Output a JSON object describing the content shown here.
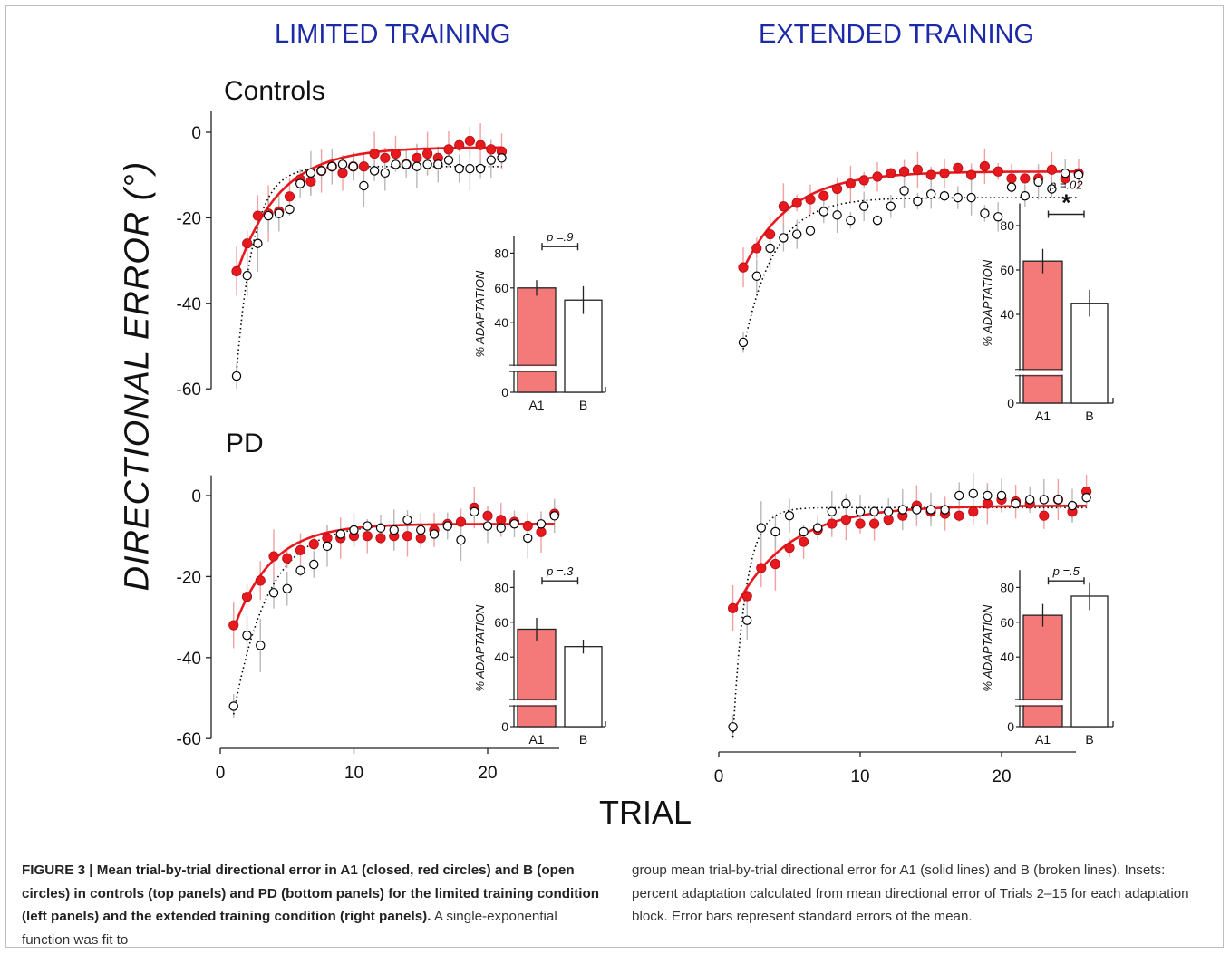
{
  "column_titles": {
    "left": "LIMITED TRAINING",
    "right": "EXTENDED TRAINING"
  },
  "group_labels": {
    "top": "Controls",
    "bottom": "PD"
  },
  "y_axis_title": "DIRECTIONAL  ERROR  (°)",
  "x_axis_title": "TRIAL",
  "colors": {
    "a1": "#e8191e",
    "a1_bar": "#f47a7a",
    "b": "#000000",
    "title": "#1c2aa8"
  },
  "caption": {
    "lead": "FIGURE 3 | Mean trial-by-trial directional error in A1 (closed, red circles) and B (open circles) in controls (top panels) and PD (bottom panels) for the limited training condition (left panels) and the extended training condition (right panels).",
    "left_rest": " A single-exponential function was fit to",
    "right": "group mean trial-by-trial directional error for A1 (solid lines) and B (broken lines). Insets: percent adaptation calculated from mean directional error of Trials 2–15 for each adaptation block. Error bars represent standard errors of the mean."
  },
  "chart_data": [
    {
      "type": "scatter",
      "panel": "limited-controls",
      "ylabel": "DIRECTIONAL  ERROR  (°)",
      "yticks": [
        0,
        -20,
        -40,
        -60
      ],
      "ylim": [
        -60,
        0
      ],
      "xlim": [
        1,
        26
      ],
      "series": [
        {
          "name": "A1",
          "style": "filled-red",
          "x": [
            1,
            2,
            3,
            4,
            5,
            6,
            7,
            8,
            9,
            10,
            11,
            12,
            13,
            14,
            15,
            16,
            17,
            18,
            19,
            20,
            21,
            22,
            23,
            24,
            25,
            26
          ],
          "y": [
            -32.5,
            -26,
            -19.5,
            -19,
            -18.5,
            -15,
            -11,
            -11.5,
            -9,
            -8,
            -9.5,
            -8,
            -8,
            -5,
            -6,
            -5,
            -7.5,
            -6,
            -5,
            -6,
            -4,
            -3,
            -2,
            -3,
            -4,
            -4.5
          ]
        },
        {
          "name": "B",
          "style": "open-black",
          "x": [
            1,
            2,
            3,
            4,
            5,
            6,
            7,
            8,
            9,
            10,
            11,
            12,
            13,
            14,
            15,
            16,
            17,
            18,
            19,
            20,
            21,
            22,
            23,
            24,
            25,
            26
          ],
          "y": [
            -57,
            -33.5,
            -26,
            -19.5,
            -19,
            -18,
            -12,
            -9.5,
            -9,
            -8,
            -7.5,
            -8,
            -12.5,
            -9,
            -9.5,
            -7.5,
            -7.5,
            -8,
            -7.5,
            -7.5,
            -6.5,
            -8.5,
            -8.5,
            -8.5,
            -6.5,
            -6
          ]
        }
      ],
      "fits": {
        "A1": {
          "plateau": -3.5,
          "start": -33,
          "tau": 4.0
        },
        "B": {
          "plateau": -8,
          "start": -56,
          "tau": 1.6
        }
      },
      "inset": {
        "type": "bar",
        "ylabel": "% ADAPTATION",
        "categories": [
          "A1",
          "B"
        ],
        "values": [
          60,
          53
        ],
        "errors": [
          4.5,
          8
        ],
        "yticks": [
          0,
          40,
          60,
          80
        ],
        "ylim": [
          0,
          90
        ],
        "significance": "p =.9",
        "star": false
      }
    },
    {
      "type": "scatter",
      "panel": "extended-controls",
      "ylim": [
        -60,
        0
      ],
      "xlim": [
        1,
        26
      ],
      "series": [
        {
          "name": "A1",
          "style": "filled-red",
          "x": [
            1,
            2,
            3,
            4,
            5,
            6,
            7,
            8,
            9,
            10,
            11,
            12,
            13,
            14,
            15,
            16,
            17,
            18,
            19,
            20,
            21,
            22,
            23,
            24,
            25,
            26
          ],
          "y": [
            -32.5,
            -27,
            -23,
            -15,
            -14,
            -13,
            -12,
            -10,
            -8.5,
            -7.5,
            -6.5,
            -5.5,
            -5,
            -4.5,
            -6,
            -5.5,
            -4,
            -6,
            -3.5,
            -5,
            -7,
            -7,
            -7,
            -4.5,
            -7,
            -5.5
          ]
        },
        {
          "name": "B",
          "style": "open-black",
          "x": [
            1,
            2,
            3,
            4,
            5,
            6,
            7,
            8,
            9,
            10,
            11,
            12,
            13,
            14,
            15,
            16,
            17,
            18,
            19,
            20,
            21,
            22,
            23,
            24,
            25,
            26
          ],
          "y": [
            -54,
            -35,
            -27,
            -24,
            -23,
            -22,
            -16.5,
            -17.5,
            -19,
            -15,
            -19,
            -15,
            -10.5,
            -13.5,
            -11.5,
            -12,
            -12.5,
            -12.5,
            -17,
            -18,
            -9.5,
            -12,
            -8,
            -10,
            -5.5,
            -6
          ]
        }
      ],
      "fits": {
        "A1": {
          "plateau": -5,
          "start": -33,
          "tau": 3.5
        },
        "B": {
          "plateau": -12.5,
          "start": -56,
          "tau": 2.3
        }
      },
      "inset": {
        "type": "bar",
        "ylabel": "% ADAPTATION",
        "categories": [
          "A1",
          "B"
        ],
        "values": [
          64,
          45
        ],
        "errors": [
          5.5,
          6
        ],
        "yticks": [
          0,
          40,
          60,
          80
        ],
        "ylim": [
          0,
          90
        ],
        "significance": "p =.02",
        "star": true
      }
    },
    {
      "type": "scatter",
      "panel": "limited-pd",
      "xlabel": "TRIAL",
      "yticks": [
        0,
        -20,
        -40,
        -60
      ],
      "xticks": [
        0,
        10,
        20
      ],
      "ylim": [
        -60,
        0
      ],
      "xlim": [
        0,
        26
      ],
      "series": [
        {
          "name": "A1",
          "style": "filled-red",
          "x": [
            1,
            2,
            3,
            4,
            5,
            6,
            7,
            8,
            9,
            10,
            11,
            12,
            13,
            14,
            15,
            16,
            17,
            18,
            19,
            20,
            21,
            22,
            23,
            24,
            25
          ],
          "y": [
            -32,
            -25,
            -21,
            -15,
            -15.5,
            -13.5,
            -12,
            -10.5,
            -10.5,
            -10,
            -10,
            -10.5,
            -10,
            -10,
            -10.5,
            -8.5,
            -7,
            -6.5,
            -3,
            -5,
            -6,
            -6.5,
            -7.5,
            -9,
            -4.5
          ]
        },
        {
          "name": "B",
          "style": "open-black",
          "x": [
            1,
            2,
            3,
            4,
            5,
            6,
            7,
            8,
            9,
            10,
            11,
            12,
            13,
            14,
            15,
            16,
            17,
            18,
            19,
            20,
            21,
            22,
            23,
            24,
            25
          ],
          "y": [
            -52,
            -34.5,
            -37,
            -24,
            -23,
            -18.5,
            -17,
            -12.5,
            -9.5,
            -8.5,
            -7.5,
            -8,
            -8.5,
            -6,
            -8.5,
            -9.5,
            -7.5,
            -11,
            -4,
            -7.5,
            -8,
            -7,
            -10.5,
            -7,
            -5
          ]
        }
      ],
      "fits": {
        "A1": {
          "plateau": -7,
          "start": -33,
          "tau": 2.8
        },
        "B": {
          "plateau": -7,
          "start": -54,
          "tau": 2.6
        }
      },
      "inset": {
        "type": "bar",
        "ylabel": "% ADAPTATION",
        "categories": [
          "A1",
          "B"
        ],
        "values": [
          56,
          46
        ],
        "errors": [
          6.5,
          4
        ],
        "yticks": [
          0,
          40,
          60,
          80
        ],
        "ylim": [
          0,
          90
        ],
        "significance": "p =.3",
        "star": false
      }
    },
    {
      "type": "scatter",
      "panel": "extended-pd",
      "xticks": [
        0,
        10,
        20
      ],
      "ylim": [
        -60,
        0
      ],
      "xlim": [
        0,
        26
      ],
      "series": [
        {
          "name": "A1",
          "style": "filled-red",
          "x": [
            1,
            2,
            3,
            4,
            5,
            6,
            7,
            8,
            9,
            10,
            11,
            12,
            13,
            14,
            15,
            16,
            17,
            18,
            19,
            20,
            21,
            22,
            23,
            24,
            25,
            26
          ],
          "y": [
            -28,
            -25,
            -18,
            -17,
            -13,
            -11.5,
            -8.5,
            -7,
            -6,
            -7,
            -7,
            -6,
            -5,
            -2.5,
            -4,
            -4.5,
            -5,
            -4,
            -2,
            -1,
            -1.5,
            -2,
            -5,
            -1,
            -4,
            1
          ]
        },
        {
          "name": "B",
          "style": "open-black",
          "x": [
            1,
            2,
            3,
            4,
            5,
            6,
            7,
            8,
            9,
            10,
            11,
            12,
            13,
            14,
            15,
            16,
            17,
            18,
            19,
            20,
            21,
            22,
            23,
            24,
            25,
            26
          ],
          "y": [
            -57.5,
            -31,
            -8,
            -9,
            -5,
            -9,
            -8,
            -4,
            -2,
            -4,
            -4,
            -4,
            -3.5,
            -3.5,
            -3.5,
            -3.5,
            0,
            0.5,
            0,
            0,
            -2,
            -1,
            -1,
            -1,
            -2.5,
            -0.5
          ]
        }
      ],
      "fits": {
        "A1": {
          "plateau": -2.5,
          "start": -29,
          "tau": 3.8
        },
        "B": {
          "plateau": -3,
          "start": -60,
          "tau": 0.9
        }
      },
      "inset": {
        "type": "bar",
        "ylabel": "% ADAPTATION",
        "categories": [
          "A1",
          "B"
        ],
        "values": [
          64,
          75
        ],
        "errors": [
          6.5,
          8
        ],
        "yticks": [
          0,
          40,
          60,
          80
        ],
        "ylim": [
          0,
          90
        ],
        "significance": "p =.5",
        "star": false
      }
    }
  ]
}
